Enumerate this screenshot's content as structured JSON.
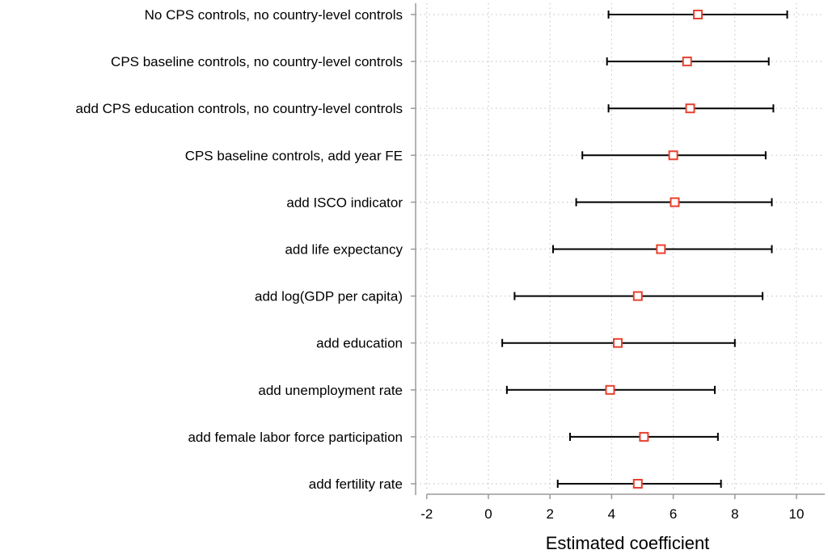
{
  "chart_data": {
    "type": "coefficient-plot",
    "title": "",
    "xlabel": "Estimated coefficient",
    "ylabel": "",
    "xlim": [
      -2.4,
      11
    ],
    "x_ticks": [
      -2,
      0,
      2,
      4,
      6,
      8,
      10
    ],
    "x_tick_labels": [
      "-2",
      "0",
      "2",
      "4",
      "6",
      "8",
      "10"
    ],
    "grid": "dotted",
    "legend": "none",
    "colors": {
      "marker": "#e8402f",
      "interval": "#000000",
      "grid": "#c8c8c8",
      "axis": "#9a9a9a"
    },
    "categories": [
      "No CPS controls, no country-level controls",
      "CPS baseline controls, no country-level controls",
      "add CPS education controls, no country-level controls",
      "CPS baseline controls, add year FE",
      "add ISCO indicator",
      "add life expectancy",
      "add log(GDP per capita)",
      "add education",
      "add unemployment rate",
      "add female labor force participation",
      "add fertility rate"
    ],
    "estimates": [
      6.8,
      6.45,
      6.55,
      6.0,
      6.05,
      5.6,
      4.85,
      4.2,
      3.95,
      5.05,
      4.85
    ],
    "ci_low": [
      3.9,
      3.85,
      3.9,
      3.05,
      2.85,
      2.1,
      0.85,
      0.45,
      0.6,
      2.65,
      2.25
    ],
    "ci_high": [
      9.7,
      9.1,
      9.25,
      9.0,
      9.2,
      9.2,
      8.9,
      8.0,
      7.35,
      7.45,
      7.55
    ]
  }
}
